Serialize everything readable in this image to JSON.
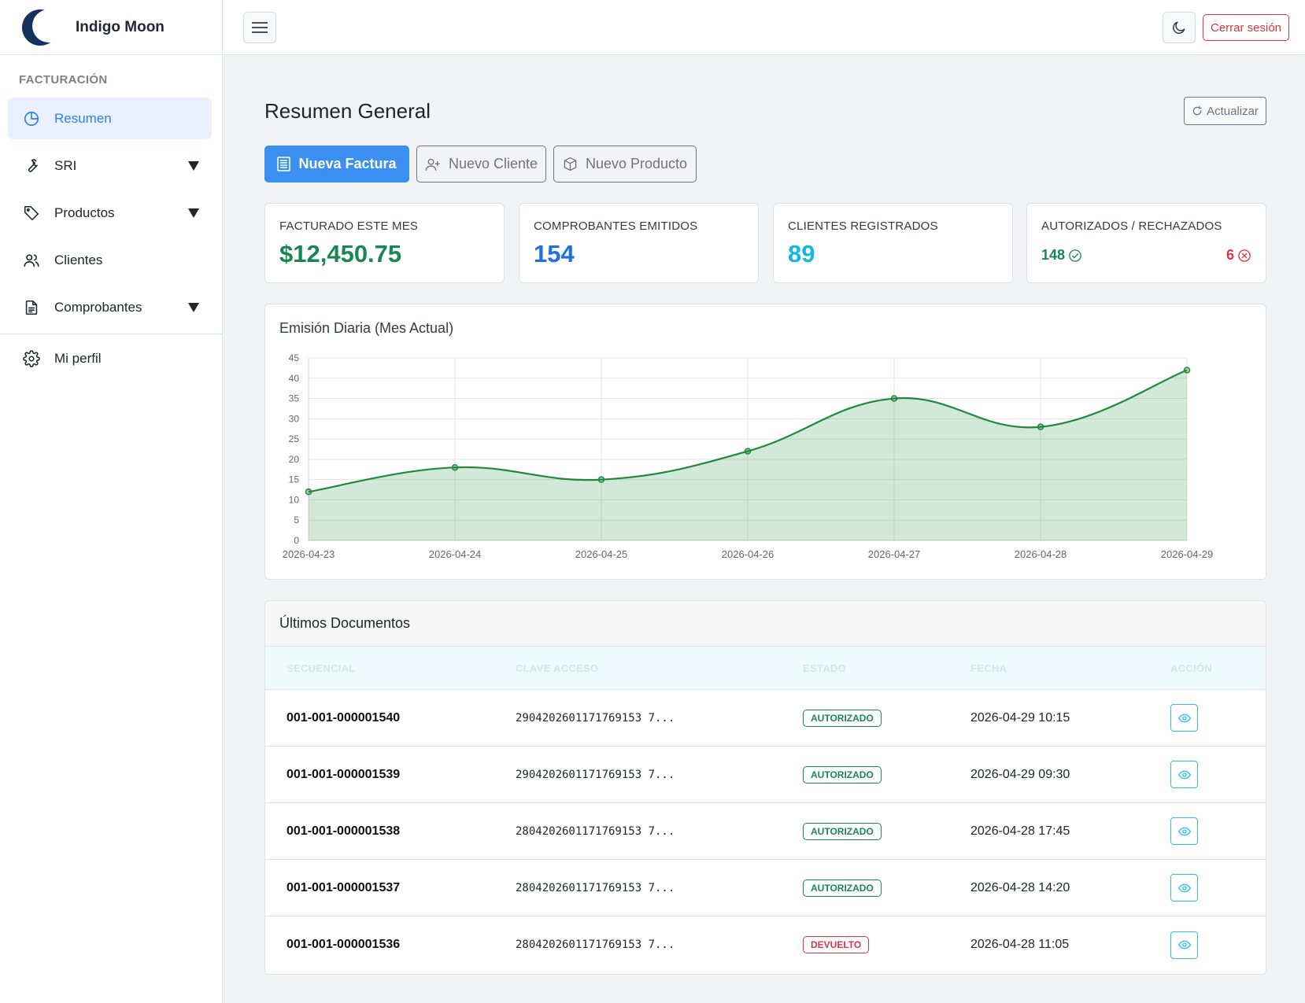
{
  "brand": {
    "name": "Indigo Moon"
  },
  "sidebar": {
    "section": "FACTURACIÓN",
    "items": [
      {
        "label": "Resumen",
        "icon": "pie-chart-icon",
        "active": true
      },
      {
        "label": "SRI",
        "icon": "wrench-icon",
        "dropdown": true
      },
      {
        "label": "Productos",
        "icon": "tag-icon",
        "dropdown": true
      },
      {
        "label": "Clientes",
        "icon": "users-icon"
      },
      {
        "label": "Comprobantes",
        "icon": "document-icon",
        "dropdown": true
      }
    ],
    "profile": {
      "label": "Mi perfil",
      "icon": "gear-icon"
    }
  },
  "topbar": {
    "logout_label": "Cerrar sesión"
  },
  "main": {
    "title": "Resumen General",
    "refresh_label": "Actualizar",
    "actions": {
      "new_invoice": "Nueva Factura",
      "new_client": "Nuevo Cliente",
      "new_product": "Nuevo Producto"
    },
    "stats": {
      "billed": {
        "label": "FACTURADO ESTE MES",
        "value": "$12,450.75",
        "color": "#198754"
      },
      "issued": {
        "label": "COMPROBANTES EMITIDOS",
        "value": "154",
        "color": "#1f6fe5"
      },
      "clients": {
        "label": "CLIENTES REGISTRADOS",
        "value": "89",
        "color": "#17b6df"
      },
      "auth": {
        "label": "AUTORIZADOS / RECHAZADOS",
        "authorized": "148",
        "rejected": "6"
      }
    },
    "table": {
      "title": "Últimos Documentos",
      "headers": {
        "seq": "SECUENCIAL",
        "key": "CLAVE ACCESO",
        "status": "ESTADO",
        "date": "FECHA",
        "action": "ACCIÓN"
      },
      "rows": [
        {
          "seq": "001-001-000001540",
          "key": "2904202601171769153 7...",
          "status": "AUTORIZADO",
          "status_color": "green",
          "date": "2026-04-29 10:15"
        },
        {
          "seq": "001-001-000001539",
          "key": "2904202601171769153 7...",
          "status": "AUTORIZADO",
          "status_color": "green",
          "date": "2026-04-29 09:30"
        },
        {
          "seq": "001-001-000001538",
          "key": "2804202601171769153 7...",
          "status": "AUTORIZADO",
          "status_color": "green",
          "date": "2026-04-28 17:45"
        },
        {
          "seq": "001-001-000001537",
          "key": "2804202601171769153 7...",
          "status": "AUTORIZADO",
          "status_color": "green",
          "date": "2026-04-28 14:20"
        },
        {
          "seq": "001-001-000001536",
          "key": "2804202601171769153 7...",
          "status": "DEVUELTO",
          "status_color": "red",
          "date": "2026-04-28 11:05"
        }
      ]
    }
  },
  "chart_data": {
    "type": "area",
    "title": "Emisión Diaria (Mes Actual)",
    "x": [
      "2026-04-23",
      "2026-04-24",
      "2026-04-25",
      "2026-04-26",
      "2026-04-27",
      "2026-04-28",
      "2026-04-29"
    ],
    "series": [
      {
        "values": [
          12,
          18,
          15,
          22,
          35,
          28,
          42
        ],
        "color": "#1f8a3a"
      }
    ],
    "ylim": [
      0,
      45
    ],
    "yticks": [
      0,
      5,
      10,
      15,
      20,
      25,
      30,
      35,
      40,
      45
    ],
    "grid": true,
    "legend": "none"
  }
}
